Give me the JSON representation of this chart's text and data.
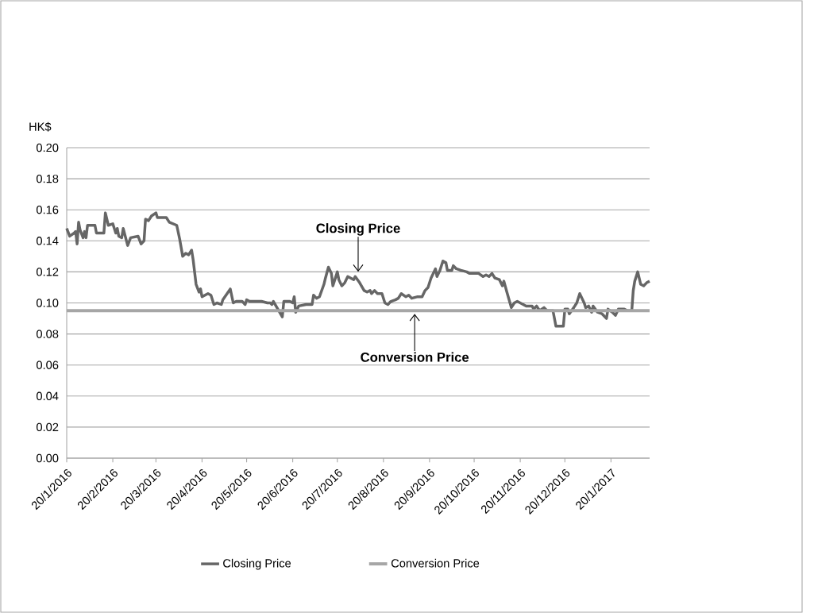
{
  "chart_data": {
    "type": "line",
    "ylabel": "HK$",
    "xlim": [
      "2016-01-20",
      "2017-02-15"
    ],
    "ylim": [
      0,
      0.2
    ],
    "yticks": [
      {
        "value": 0,
        "label": "0.00"
      },
      {
        "value": 0.02,
        "label": "0.02"
      },
      {
        "value": 0.04,
        "label": "0.04"
      },
      {
        "value": 0.06,
        "label": "0.06"
      },
      {
        "value": 0.08,
        "label": "0.08"
      },
      {
        "value": 0.1,
        "label": "0.10"
      },
      {
        "value": 0.12,
        "label": "0.12"
      },
      {
        "value": 0.14,
        "label": "0.14"
      },
      {
        "value": 0.16,
        "label": "0.16"
      },
      {
        "value": 0.18,
        "label": "0.18"
      },
      {
        "value": 0.2,
        "label": "0.20"
      }
    ],
    "xticks": [
      {
        "value": "2016-01-20",
        "label": "20/1/2016"
      },
      {
        "value": "2016-02-20",
        "label": "20/2/2016"
      },
      {
        "value": "2016-03-20",
        "label": "20/3/2016"
      },
      {
        "value": "2016-04-20",
        "label": "20/4/2016"
      },
      {
        "value": "2016-05-20",
        "label": "20/5/2016"
      },
      {
        "value": "2016-06-20",
        "label": "20/6/2016"
      },
      {
        "value": "2016-07-20",
        "label": "20/7/2016"
      },
      {
        "value": "2016-08-20",
        "label": "20/8/2016"
      },
      {
        "value": "2016-09-20",
        "label": "20/9/2016"
      },
      {
        "value": "2016-10-20",
        "label": "20/10/2016"
      },
      {
        "value": "2016-11-20",
        "label": "20/11/2016"
      },
      {
        "value": "2016-12-20",
        "label": "20/12/2016"
      },
      {
        "value": "2017-01-20",
        "label": "20/1/2017"
      }
    ],
    "grid": "y",
    "legend": "bottom",
    "marker": "none",
    "line_style": "solid",
    "series": [
      {
        "name": "Closing Price",
        "color": "#666666",
        "x": [
          "2016-01-20",
          "2016-01-22",
          "2016-01-25",
          "2016-01-26",
          "2016-01-27",
          "2016-01-28",
          "2016-01-29",
          "2016-01-31",
          "2016-02-01",
          "2016-02-02",
          "2016-02-03",
          "2016-02-08",
          "2016-02-09",
          "2016-02-14",
          "2016-02-15",
          "2016-02-17",
          "2016-02-20",
          "2016-02-22",
          "2016-02-23",
          "2016-02-24",
          "2016-02-26",
          "2016-02-27",
          "2016-03-01",
          "2016-03-03",
          "2016-03-08",
          "2016-03-10",
          "2016-03-12",
          "2016-03-13",
          "2016-03-15",
          "2016-03-17",
          "2016-03-20",
          "2016-03-21",
          "2016-03-27",
          "2016-03-29",
          "2016-04-03",
          "2016-04-05",
          "2016-04-07",
          "2016-04-09",
          "2016-04-11",
          "2016-04-13",
          "2016-04-14",
          "2016-04-16",
          "2016-04-18",
          "2016-04-19",
          "2016-04-20",
          "2016-04-24",
          "2016-04-26",
          "2016-04-28",
          "2016-04-30",
          "2016-05-03",
          "2016-05-04",
          "2016-05-09",
          "2016-05-11",
          "2016-05-13",
          "2016-05-17",
          "2016-05-19",
          "2016-05-20",
          "2016-05-22",
          "2016-05-30",
          "2016-06-03",
          "2016-06-05",
          "2016-06-06",
          "2016-06-07",
          "2016-06-13",
          "2016-06-14",
          "2016-06-18",
          "2016-06-20",
          "2016-06-21",
          "2016-06-22",
          "2016-06-24",
          "2016-06-29",
          "2016-07-03",
          "2016-07-04",
          "2016-07-06",
          "2016-07-08",
          "2016-07-11",
          "2016-07-12",
          "2016-07-14",
          "2016-07-16",
          "2016-07-17",
          "2016-07-20",
          "2016-07-21",
          "2016-07-23",
          "2016-07-25",
          "2016-07-27",
          "2016-07-29",
          "2016-07-31",
          "2016-08-01",
          "2016-08-04",
          "2016-08-07",
          "2016-08-09",
          "2016-08-11",
          "2016-08-12",
          "2016-08-14",
          "2016-08-16",
          "2016-08-19",
          "2016-08-21",
          "2016-08-23",
          "2016-08-25",
          "2016-08-28",
          "2016-08-30",
          "2016-09-01",
          "2016-09-04",
          "2016-09-06",
          "2016-09-08",
          "2016-09-12",
          "2016-09-15",
          "2016-09-17",
          "2016-09-19",
          "2016-09-21",
          "2016-09-24",
          "2016-09-25",
          "2016-09-27",
          "2016-09-29",
          "2016-10-01",
          "2016-10-02",
          "2016-10-05",
          "2016-10-06",
          "2016-10-08",
          "2016-10-11",
          "2016-10-15",
          "2016-10-17",
          "2016-10-23",
          "2016-10-26",
          "2016-10-28",
          "2016-10-30",
          "2016-11-01",
          "2016-11-03",
          "2016-11-06",
          "2016-11-08",
          "2016-11-09",
          "2016-11-11",
          "2016-11-14",
          "2016-11-16",
          "2016-11-18",
          "2016-11-22",
          "2016-11-24",
          "2016-11-28",
          "2016-11-29",
          "2016-12-01",
          "2016-12-03",
          "2016-12-06",
          "2016-12-08",
          "2016-12-12",
          "2016-12-14",
          "2016-12-19",
          "2016-12-20",
          "2016-12-22",
          "2016-12-23",
          "2016-12-26",
          "2016-12-28",
          "2016-12-30",
          "2017-01-02",
          "2017-01-03",
          "2017-01-05",
          "2017-01-07",
          "2017-01-08",
          "2017-01-11",
          "2017-01-14",
          "2017-01-17",
          "2017-01-18",
          "2017-01-21",
          "2017-01-23",
          "2017-01-25",
          "2017-01-29",
          "2017-01-31",
          "2017-02-03",
          "2017-02-04",
          "2017-02-05",
          "2017-02-07",
          "2017-02-09",
          "2017-02-11",
          "2017-02-13",
          "2017-02-15"
        ],
        "values": [
          0.148,
          0.143,
          0.145,
          0.146,
          0.138,
          0.152,
          0.147,
          0.142,
          0.146,
          0.142,
          0.15,
          0.15,
          0.145,
          0.145,
          0.158,
          0.15,
          0.151,
          0.145,
          0.148,
          0.143,
          0.142,
          0.148,
          0.137,
          0.142,
          0.143,
          0.138,
          0.14,
          0.154,
          0.153,
          0.156,
          0.158,
          0.155,
          0.155,
          0.152,
          0.15,
          0.141,
          0.13,
          0.132,
          0.131,
          0.134,
          0.128,
          0.112,
          0.107,
          0.109,
          0.104,
          0.106,
          0.105,
          0.099,
          0.1,
          0.099,
          0.102,
          0.109,
          0.1,
          0.101,
          0.101,
          0.099,
          0.102,
          0.101,
          0.101,
          0.1,
          0.1,
          0.099,
          0.101,
          0.091,
          0.101,
          0.101,
          0.1,
          0.104,
          0.094,
          0.098,
          0.099,
          0.099,
          0.105,
          0.103,
          0.104,
          0.112,
          0.116,
          0.123,
          0.119,
          0.111,
          0.12,
          0.115,
          0.111,
          0.113,
          0.117,
          0.116,
          0.115,
          0.117,
          0.113,
          0.108,
          0.107,
          0.108,
          0.106,
          0.108,
          0.106,
          0.106,
          0.1,
          0.099,
          0.101,
          0.102,
          0.103,
          0.106,
          0.104,
          0.105,
          0.103,
          0.104,
          0.104,
          0.108,
          0.11,
          0.116,
          0.122,
          0.117,
          0.121,
          0.127,
          0.126,
          0.121,
          0.121,
          0.124,
          0.122,
          0.121,
          0.12,
          0.119,
          0.119,
          0.117,
          0.118,
          0.117,
          0.119,
          0.116,
          0.115,
          0.111,
          0.114,
          0.107,
          0.097,
          0.1,
          0.101,
          0.099,
          0.098,
          0.098,
          0.096,
          0.098,
          0.095,
          0.097,
          0.095,
          0.095,
          0.085,
          0.085,
          0.096,
          0.096,
          0.093,
          0.097,
          0.1,
          0.106,
          0.1,
          0.097,
          0.098,
          0.094,
          0.098,
          0.094,
          0.093,
          0.09,
          0.096,
          0.094,
          0.092,
          0.096,
          0.096,
          0.095,
          0.095,
          0.108,
          0.114,
          0.12,
          0.112,
          0.111,
          0.113,
          0.114
        ]
      },
      {
        "name": "Conversion Price",
        "color": "#a6a6a6",
        "x": [
          "2016-01-20",
          "2017-02-15"
        ],
        "values": [
          0.095,
          0.095
        ]
      }
    ],
    "annotations": [
      {
        "text": "Closing Price",
        "x": "2016-08-03",
        "y": 0.118
      },
      {
        "text": "Conversion Price",
        "x": "2016-09-10",
        "y": 0.095
      }
    ]
  }
}
